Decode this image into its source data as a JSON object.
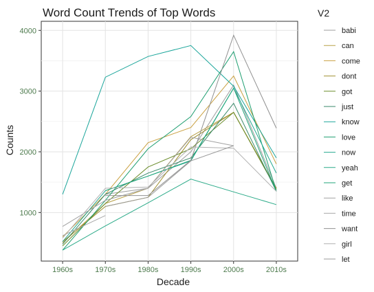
{
  "chart_data": {
    "type": "line",
    "title": "Word Count Trends of Top Words",
    "xlabel": "Decade",
    "ylabel": "Counts",
    "x": [
      "1960s",
      "1970s",
      "1980s",
      "1990s",
      "2000s",
      "2010s"
    ],
    "ylim": [
      200,
      4150
    ],
    "yticks": [
      1000,
      2000,
      3000,
      4000
    ],
    "grid": true,
    "legend_title": "V2",
    "legend_position": "right",
    "series": [
      {
        "name": "babi",
        "color": "#9e9e9e",
        "values": [
          null,
          1300,
          1400,
          2000,
          3100,
          1400
        ]
      },
      {
        "name": "can",
        "color": "#b8a047",
        "values": [
          500,
          1150,
          1400,
          2250,
          2650,
          1400
        ]
      },
      {
        "name": "come",
        "color": "#c9a040",
        "values": [
          600,
          1300,
          2150,
          2400,
          3250,
          1800
        ]
      },
      {
        "name": "dont",
        "color": "#a09030",
        "values": [
          520,
          1100,
          1250,
          2200,
          2650,
          1400
        ]
      },
      {
        "name": "got",
        "color": "#6a8c2a",
        "values": [
          450,
          1150,
          1750,
          2050,
          2650,
          1380
        ]
      },
      {
        "name": "just",
        "color": "#3a8a6a",
        "values": [
          480,
          1300,
          1650,
          1900,
          2800,
          1350
        ]
      },
      {
        "name": "know",
        "color": "#1aa59a",
        "values": [
          1300,
          3230,
          3570,
          3750,
          3080,
          1900
        ]
      },
      {
        "name": "love",
        "color": "#1e9e70",
        "values": [
          380,
          1200,
          2050,
          2580,
          3650,
          1350
        ]
      },
      {
        "name": "now",
        "color": "#24a890",
        "values": [
          520,
          1360,
          1600,
          1850,
          3050,
          1650
        ]
      },
      {
        "name": "yeah",
        "color": "#2aaa88",
        "values": [
          380,
          780,
          1160,
          1550,
          1340,
          1130
        ]
      },
      {
        "name": "get",
        "color": "#20a67a",
        "values": [
          null,
          1360,
          1600,
          1860,
          3050,
          1350
        ]
      },
      {
        "name": "like",
        "color": "#a0a0a0",
        "values": [
          770,
          1200,
          1400,
          2240,
          2100,
          null
        ]
      },
      {
        "name": "time",
        "color": "#a8a8a8",
        "values": [
          620,
          950,
          null,
          null,
          null,
          null
        ]
      },
      {
        "name": "want",
        "color": "#909090",
        "values": [
          null,
          1280,
          1280,
          1860,
          3920,
          2390
        ]
      },
      {
        "name": "girl",
        "color": "#b0b0b0",
        "values": [
          580,
          1400,
          1420,
          2080,
          2060,
          1350
        ]
      },
      {
        "name": "let",
        "color": "#999999",
        "values": [
          null,
          1100,
          1250,
          1850,
          2100,
          null
        ]
      }
    ]
  }
}
